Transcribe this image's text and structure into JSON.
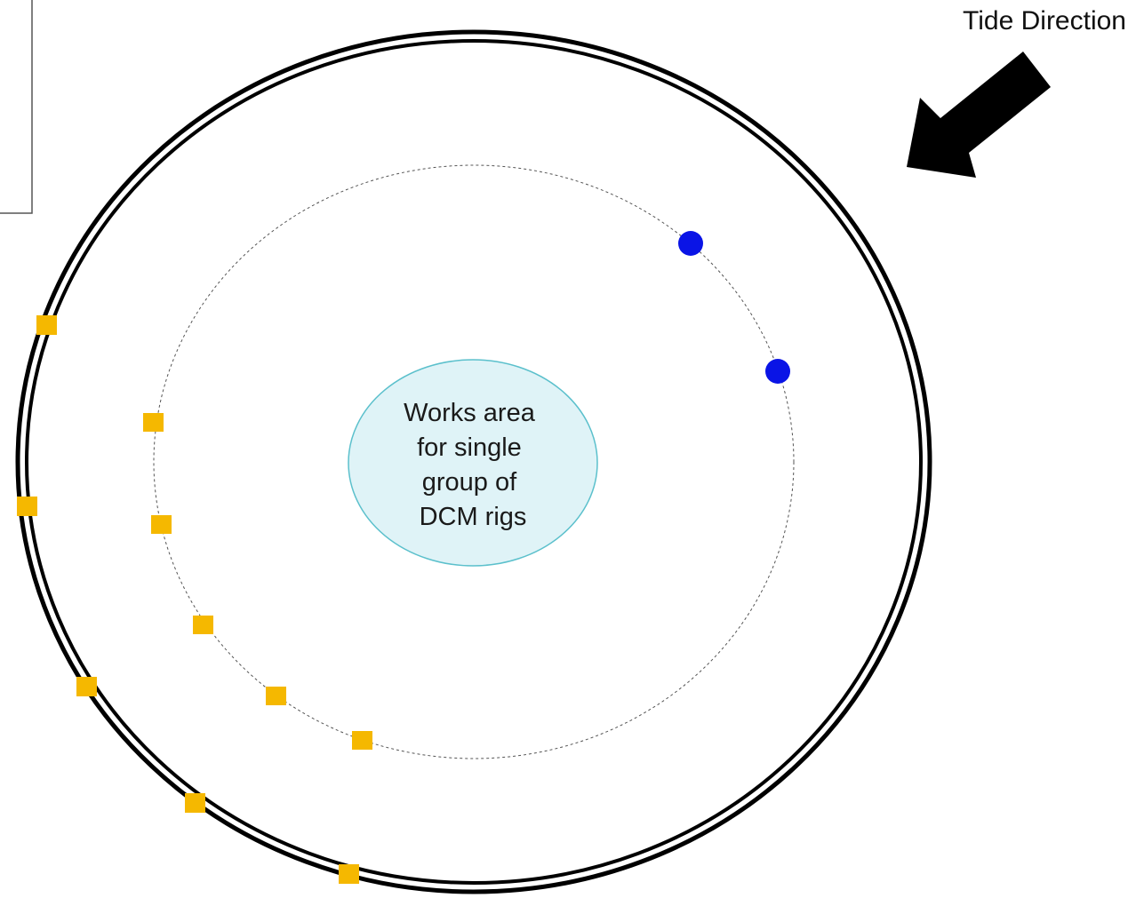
{
  "diagram": {
    "tide_label": "Tide Direction",
    "works_area_lines": [
      "Works area",
      "for single",
      "group of",
      "DCM rigs"
    ],
    "colors": {
      "outer_ring": "#000000",
      "dashed_ring": "#555555",
      "works_fill": "#dff3f7",
      "works_stroke": "#5bc0cc",
      "square_marker": "#f5b800",
      "dot_marker": "#0a14e6",
      "arrow": "#000000"
    },
    "icons": {
      "arrow": "tide-direction-arrow-icon",
      "square": "square-marker-icon",
      "dot": "circle-marker-icon"
    }
  }
}
